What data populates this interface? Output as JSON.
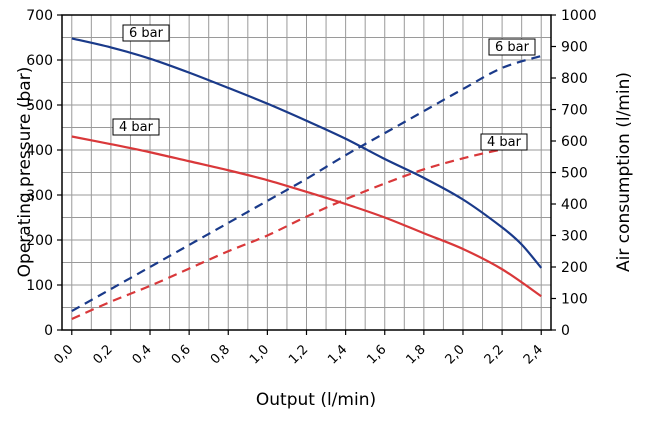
{
  "chart_data": {
    "type": "line",
    "xlabel": "Output (l/min)",
    "ylabel_left": "Operating pressure (bar)",
    "ylabel_right": "Air consumption (l/min)",
    "x_ticks": [
      "0,0",
      "0,2",
      "0,4",
      "0,6",
      "0,8",
      "1,0",
      "1,2",
      "1,4",
      "1,6",
      "1,8",
      "2,0",
      "2,2",
      "2,4"
    ],
    "x_tick_values": [
      0,
      0.2,
      0.4,
      0.6,
      0.8,
      1.0,
      1.2,
      1.4,
      1.6,
      1.8,
      2.0,
      2.2,
      2.4
    ],
    "xlim": [
      -0.05,
      2.45
    ],
    "ylim_left": [
      0,
      700
    ],
    "y_ticks_left": [
      "0",
      "100",
      "200",
      "300",
      "400",
      "500",
      "600",
      "700"
    ],
    "y_tick_values_left": [
      0,
      100,
      200,
      300,
      400,
      500,
      600,
      700
    ],
    "ylim_right": [
      0,
      1000
    ],
    "y_ticks_right": [
      "0",
      "100",
      "200",
      "300",
      "400",
      "500",
      "600",
      "700",
      "800",
      "900",
      "1000"
    ],
    "y_tick_values_right": [
      0,
      100,
      200,
      300,
      400,
      500,
      600,
      700,
      800,
      900,
      1000
    ],
    "grid": true,
    "colors": {
      "blue": "#1a3a8a",
      "red": "#d9383a"
    },
    "series": [
      {
        "name": "6 bar",
        "axis": "left",
        "style": "solid",
        "color": "#1a3a8a",
        "x": [
          0.0,
          0.2,
          0.4,
          0.6,
          0.8,
          1.0,
          1.2,
          1.4,
          1.6,
          1.8,
          2.0,
          2.2,
          2.3,
          2.4
        ],
        "y": [
          648,
          628,
          603,
          572,
          538,
          503,
          465,
          425,
          380,
          338,
          290,
          228,
          190,
          138
        ]
      },
      {
        "name": "4 bar",
        "axis": "left",
        "style": "solid",
        "color": "#d9383a",
        "x": [
          0.0,
          0.2,
          0.4,
          0.6,
          0.8,
          1.0,
          1.2,
          1.4,
          1.6,
          1.8,
          2.0,
          2.2,
          2.4
        ],
        "y": [
          430,
          413,
          395,
          375,
          355,
          333,
          307,
          280,
          250,
          215,
          180,
          135,
          75
        ]
      },
      {
        "name": "6 bar",
        "axis": "right",
        "style": "dashed",
        "color": "#1a3a8a",
        "x": [
          0.0,
          0.2,
          0.4,
          0.6,
          0.8,
          1.0,
          1.2,
          1.4,
          1.6,
          1.8,
          2.0,
          2.2,
          2.4
        ],
        "y": [
          60,
          130,
          200,
          270,
          340,
          410,
          480,
          555,
          625,
          695,
          765,
          832,
          870
        ]
      },
      {
        "name": "4 bar",
        "axis": "right",
        "style": "dashed",
        "color": "#d9383a",
        "x": [
          0.0,
          0.2,
          0.4,
          0.6,
          0.8,
          1.0,
          1.2,
          1.4,
          1.6,
          1.8,
          2.0,
          2.2,
          2.35
        ],
        "y": [
          35,
          90,
          140,
          195,
          250,
          300,
          360,
          415,
          465,
          510,
          545,
          573,
          585
        ]
      }
    ]
  }
}
